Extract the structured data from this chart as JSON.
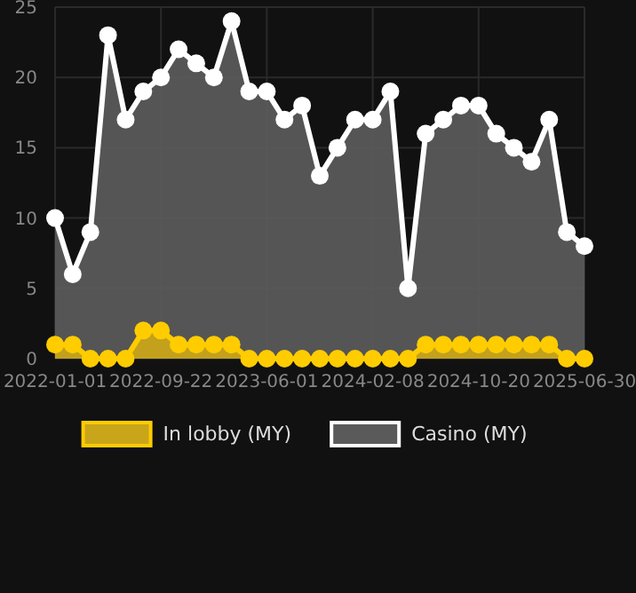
{
  "chart_data": {
    "type": "area",
    "categories": [
      "2022-01-01",
      null,
      null,
      null,
      null,
      null,
      "2022-09-22",
      null,
      null,
      null,
      null,
      null,
      "2023-06-01",
      null,
      null,
      null,
      null,
      null,
      "2024-02-08",
      null,
      null,
      null,
      null,
      null,
      "2024-10-20",
      null,
      null,
      null,
      null,
      null,
      "2025-06-30"
    ],
    "series": [
      {
        "name": "Casino (MY)",
        "color": "#ffffff",
        "values": [
          10,
          6,
          9,
          23,
          17,
          19,
          20,
          22,
          21,
          20,
          24,
          19,
          19,
          17,
          18,
          13,
          15,
          17,
          17,
          19,
          5,
          16,
          17,
          18,
          18,
          16,
          15,
          14,
          17,
          9,
          8
        ]
      },
      {
        "name": "In lobby (MY)",
        "color": "#ffcc00",
        "values": [
          1,
          1,
          0,
          0,
          0,
          2,
          2,
          1,
          1,
          1,
          1,
          0,
          0,
          0,
          0,
          0,
          0,
          0,
          0,
          0,
          0,
          1,
          1,
          1,
          1,
          1,
          1,
          1,
          1,
          0,
          0
        ]
      }
    ],
    "ylim": [
      0,
      25
    ],
    "yticks": [
      0,
      5,
      10,
      15,
      20,
      25
    ],
    "grid": true,
    "legend": "bottom",
    "marker": "circle"
  }
}
